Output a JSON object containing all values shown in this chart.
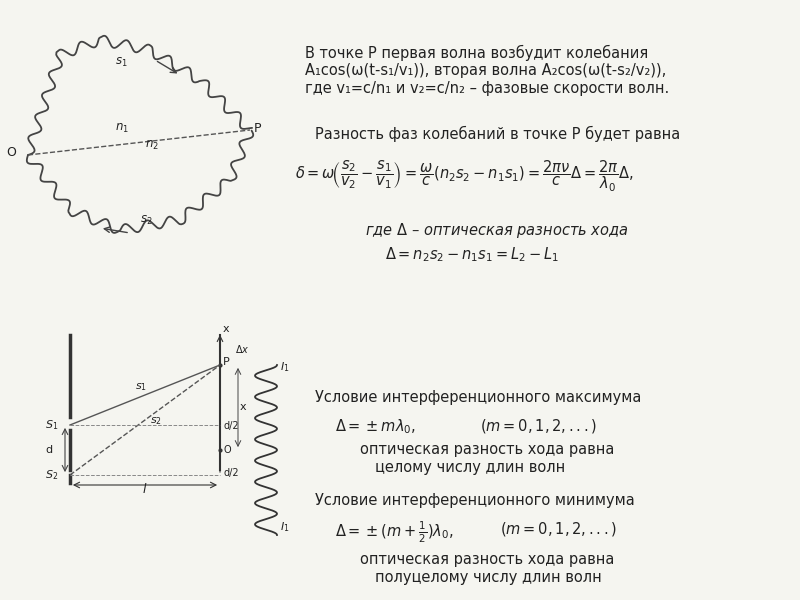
{
  "bg_color": "#f5f5f0",
  "text_color": "#222222",
  "title_text1": "В точке Р первая волна возбудит колебания",
  "title_text2": "A₁cos(ω(t-s₁/v₁)), вторая волна A₂cos(ω(t-s₂/v₂)),",
  "title_text3": "где v₁=c/n₁ и v₂=c/n₂ – фазовые скорости волн.",
  "section2_intro": "Разность фаз колебаний в точке Р будет равна",
  "formula_main": "δ = ω （s₂/v₂ – s₁/v₁） = (ω/c)(n₂s₂ – n₁s₁) = (2πν/c)Δ= (2π/λ₀)Δ,",
  "where_delta": "где Δ – оптическая разность хода",
  "delta_formula": "Δ= n₂s₂ – n₁s₁ = L₂ – L₁",
  "max_title": "Условие интерференционного максимума",
  "max_formula": "Δ= ±mλ₀,          (m = 0, 1, 2, ...)",
  "max_text1": "оптическая разность хода равна",
  "max_text2": "целому числу длин волн",
  "min_title": "Условие интерференционного минимума",
  "min_formula": "Δ= ±(m + 1/2)λ₀,     (m = 0, 1, 2, ... )",
  "min_text1": "оптическая разность хода равна",
  "min_text2": "полуцелому числу длин волн"
}
